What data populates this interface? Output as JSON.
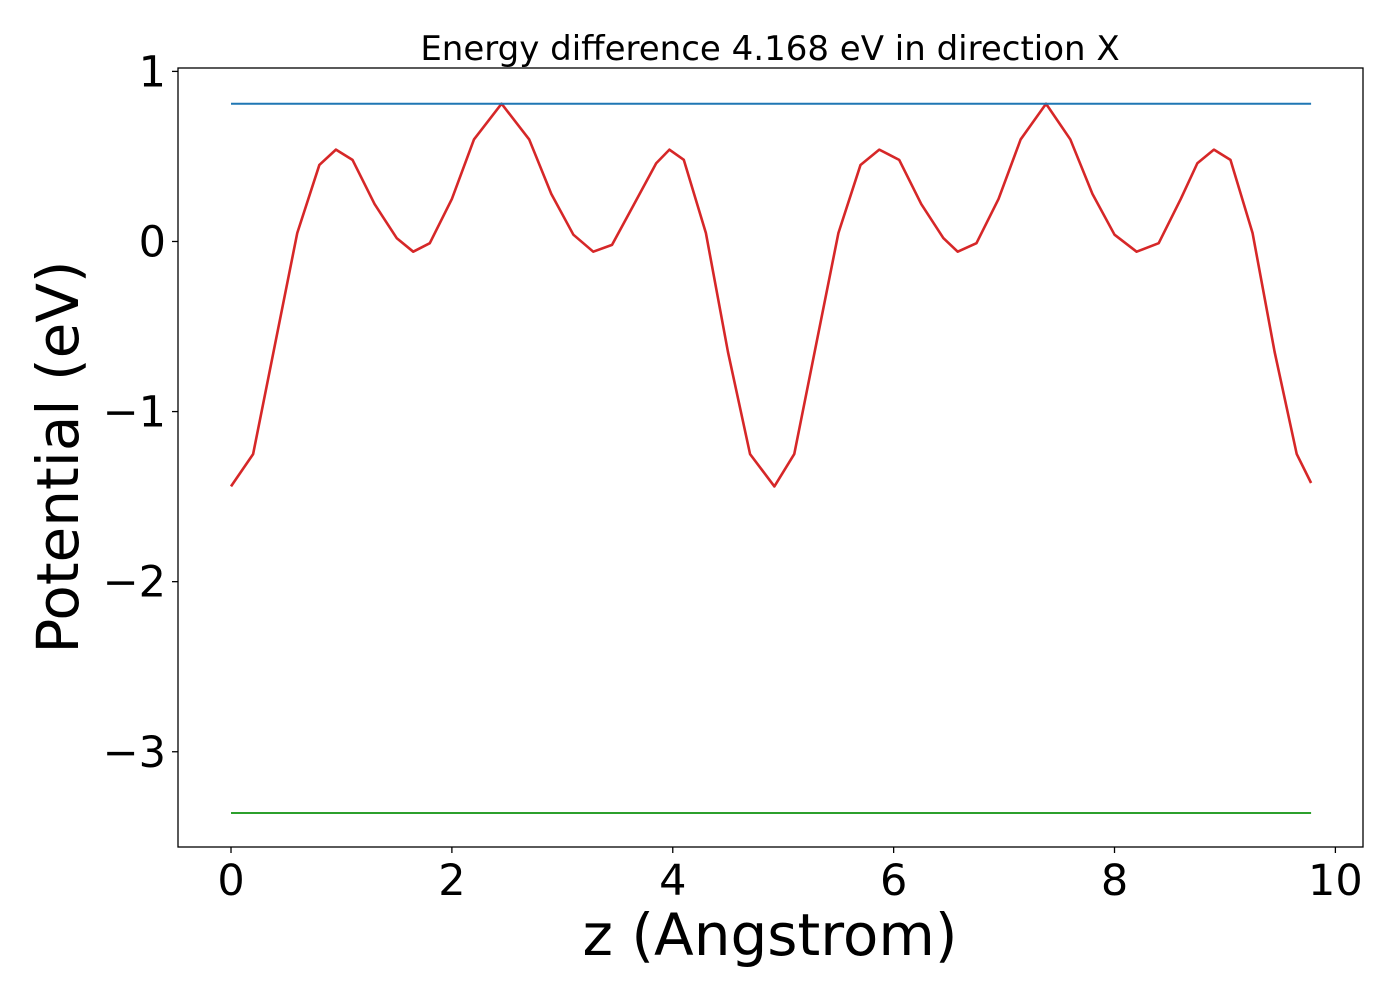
{
  "chart_data": {
    "type": "line",
    "title": "Energy difference 4.168 eV in direction X",
    "xlabel": "z (Angstrom)",
    "ylabel": "Potential (eV)",
    "xlim": [
      -0.48,
      10.25
    ],
    "ylim": [
      -3.56,
      1.02
    ],
    "xticks": [
      0,
      2,
      4,
      6,
      8,
      10
    ],
    "xtick_labels": [
      "0",
      "2",
      "4",
      "6",
      "8",
      "10"
    ],
    "yticks": [
      1,
      0,
      -1,
      -2,
      -3
    ],
    "ytick_labels": [
      "1",
      "0",
      "−1",
      "−2",
      "−3"
    ],
    "grid": false,
    "legend": "none",
    "series": [
      {
        "color": "#d62728",
        "x": [
          0.0,
          0.2,
          0.4,
          0.6,
          0.8,
          0.95,
          1.1,
          1.3,
          1.5,
          1.65,
          1.8,
          2.0,
          2.2,
          2.45,
          2.7,
          2.9,
          3.1,
          3.28,
          3.45,
          3.65,
          3.85,
          3.97,
          4.1,
          4.3,
          4.5,
          4.7,
          4.92,
          5.1,
          5.3,
          5.5,
          5.7,
          5.87,
          6.05,
          6.25,
          6.45,
          6.58,
          6.75,
          6.95,
          7.15,
          7.38,
          7.6,
          7.8,
          8.0,
          8.2,
          8.4,
          8.6,
          8.75,
          8.9,
          9.05,
          9.25,
          9.45,
          9.65,
          9.78
        ],
        "y": [
          -1.44,
          -1.25,
          -0.6,
          0.05,
          0.45,
          0.54,
          0.48,
          0.22,
          0.02,
          -0.06,
          -0.01,
          0.25,
          0.6,
          0.81,
          0.6,
          0.28,
          0.04,
          -0.06,
          -0.02,
          0.22,
          0.46,
          0.54,
          0.48,
          0.05,
          -0.65,
          -1.25,
          -1.44,
          -1.25,
          -0.6,
          0.05,
          0.45,
          0.54,
          0.48,
          0.22,
          0.02,
          -0.06,
          -0.01,
          0.25,
          0.6,
          0.81,
          0.6,
          0.28,
          0.04,
          -0.06,
          -0.01,
          0.25,
          0.46,
          0.54,
          0.48,
          0.05,
          -0.65,
          -1.25,
          -1.42
        ]
      },
      {
        "color": "#1f77b4",
        "x": [
          0.0,
          9.78
        ],
        "y": [
          0.81,
          0.81
        ]
      },
      {
        "color": "#2ca02c",
        "x": [
          0.0,
          9.78
        ],
        "y": [
          -3.36,
          -3.36
        ]
      }
    ]
  }
}
